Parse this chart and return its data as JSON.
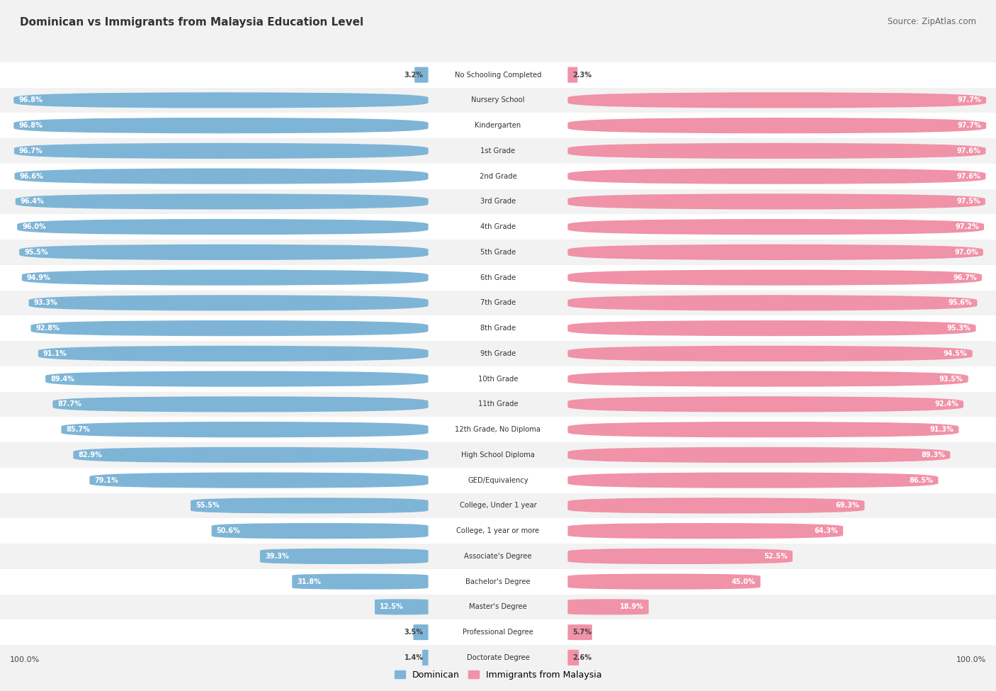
{
  "title": "Dominican vs Immigrants from Malaysia Education Level",
  "source": "Source: ZipAtlas.com",
  "categories": [
    "No Schooling Completed",
    "Nursery School",
    "Kindergarten",
    "1st Grade",
    "2nd Grade",
    "3rd Grade",
    "4th Grade",
    "5th Grade",
    "6th Grade",
    "7th Grade",
    "8th Grade",
    "9th Grade",
    "10th Grade",
    "11th Grade",
    "12th Grade, No Diploma",
    "High School Diploma",
    "GED/Equivalency",
    "College, Under 1 year",
    "College, 1 year or more",
    "Associate's Degree",
    "Bachelor's Degree",
    "Master's Degree",
    "Professional Degree",
    "Doctorate Degree"
  ],
  "dominican": [
    3.2,
    96.8,
    96.8,
    96.7,
    96.6,
    96.4,
    96.0,
    95.5,
    94.9,
    93.3,
    92.8,
    91.1,
    89.4,
    87.7,
    85.7,
    82.9,
    79.1,
    55.5,
    50.6,
    39.3,
    31.8,
    12.5,
    3.5,
    1.4
  ],
  "malaysia": [
    2.3,
    97.7,
    97.7,
    97.6,
    97.6,
    97.5,
    97.2,
    97.0,
    96.7,
    95.6,
    95.3,
    94.5,
    93.5,
    92.4,
    91.3,
    89.3,
    86.5,
    69.3,
    64.3,
    52.5,
    45.0,
    18.9,
    5.7,
    2.6
  ],
  "dominican_color": "#7eb5d6",
  "malaysia_color": "#f092a8",
  "row_color_odd": "#f2f2f2",
  "row_color_even": "#ffffff",
  "bg_color": "#f2f2f2",
  "legend_dominican": "Dominican",
  "legend_malaysia": "Immigrants from Malaysia",
  "label_inside_threshold_dom": 10.0,
  "label_inside_threshold_mal": 10.0
}
